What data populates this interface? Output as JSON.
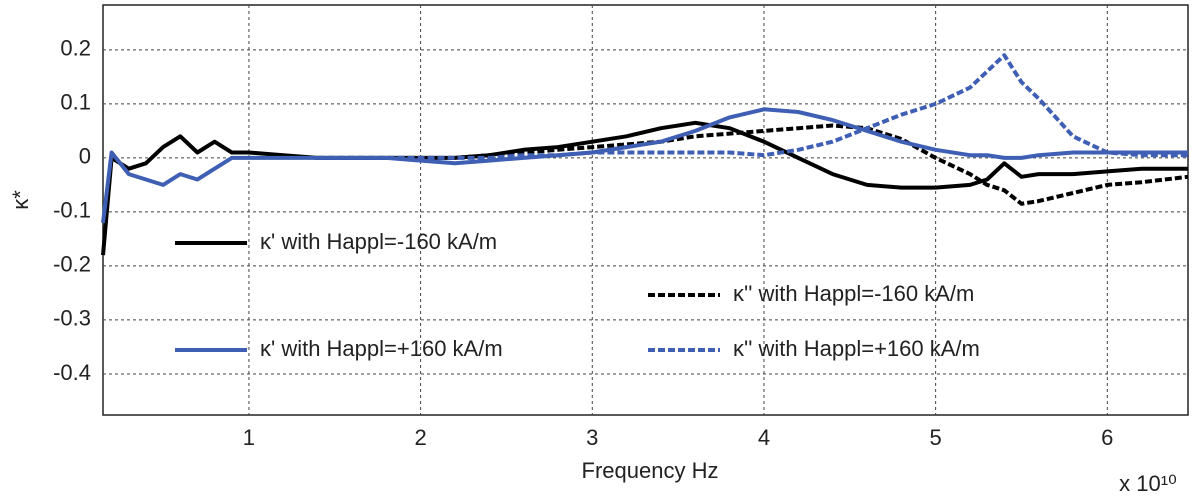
{
  "chart_data": {
    "type": "line",
    "xlabel": "Frequency Hz",
    "ylabel": "κ*",
    "x_multiplier": "x 10¹⁰",
    "x": [
      0.15,
      0.2,
      0.3,
      0.4,
      0.5,
      0.6,
      0.7,
      0.8,
      0.9,
      1.0,
      1.2,
      1.4,
      1.6,
      1.8,
      2.0,
      2.2,
      2.4,
      2.6,
      2.8,
      3.0,
      3.2,
      3.4,
      3.6,
      3.8,
      4.0,
      4.2,
      4.4,
      4.6,
      4.8,
      5.0,
      5.2,
      5.3,
      5.4,
      5.5,
      5.6,
      5.8,
      6.0,
      6.2,
      6.47
    ],
    "series": [
      {
        "name": "κ' with Happl=-160 kA/m",
        "color": "#000000",
        "linestyle": "solid",
        "values": [
          -0.18,
          0.0,
          -0.02,
          -0.01,
          0.02,
          0.04,
          0.01,
          0.03,
          0.01,
          0.01,
          0.005,
          0.0,
          0.0,
          0.0,
          0.0,
          0.0,
          0.005,
          0.015,
          0.02,
          0.03,
          0.04,
          0.055,
          0.065,
          0.055,
          0.03,
          0.0,
          -0.03,
          -0.05,
          -0.055,
          -0.055,
          -0.05,
          -0.04,
          -0.01,
          -0.035,
          -0.03,
          -0.03,
          -0.025,
          -0.02,
          -0.02
        ]
      },
      {
        "name": "κ'' with Happl=-160 kA/m",
        "color": "#000000",
        "linestyle": "dashed",
        "values": [
          null,
          null,
          null,
          null,
          null,
          null,
          null,
          null,
          null,
          null,
          null,
          0.0,
          0.0,
          0.0,
          0.0,
          0.0,
          0.005,
          0.01,
          0.015,
          0.02,
          0.025,
          0.03,
          0.04,
          0.045,
          0.05,
          0.055,
          0.06,
          0.055,
          0.035,
          0.0,
          -0.03,
          -0.05,
          -0.06,
          -0.085,
          -0.08,
          -0.065,
          -0.05,
          -0.045,
          -0.035
        ]
      },
      {
        "name": "κ' with Happl=+160 kA/m",
        "color": "#3f5fb5",
        "linestyle": "solid",
        "values": [
          -0.12,
          0.01,
          -0.03,
          -0.04,
          -0.05,
          -0.03,
          -0.04,
          -0.02,
          0.0,
          0.0,
          0.0,
          0.0,
          0.0,
          0.0,
          -0.005,
          -0.01,
          -0.005,
          0.0,
          0.005,
          0.01,
          0.02,
          0.03,
          0.05,
          0.075,
          0.09,
          0.085,
          0.07,
          0.05,
          0.03,
          0.015,
          0.005,
          0.005,
          0.0,
          0.0,
          0.005,
          0.01,
          0.01,
          0.01,
          0.01
        ]
      },
      {
        "name": "κ'' with Happl=+160 kA/m",
        "color": "#3f5fb5",
        "linestyle": "dashed",
        "values": [
          null,
          null,
          null,
          null,
          null,
          null,
          null,
          null,
          null,
          null,
          null,
          0.0,
          0.0,
          0.0,
          0.0,
          0.0,
          0.0,
          0.005,
          0.005,
          0.01,
          0.01,
          0.01,
          0.01,
          0.01,
          0.005,
          0.015,
          0.03,
          0.055,
          0.08,
          0.1,
          0.13,
          0.16,
          0.19,
          0.14,
          0.11,
          0.04,
          0.01,
          0.005,
          0.005
        ]
      }
    ],
    "xlim": [
      0.15,
      6.47
    ],
    "xticks": [
      1,
      2,
      3,
      4,
      5,
      6
    ],
    "ylim": [
      -0.476,
      0.283
    ],
    "yticks": [
      0.2,
      0.1,
      0,
      -0.1,
      -0.2,
      -0.3,
      -0.4
    ],
    "grid": true
  }
}
